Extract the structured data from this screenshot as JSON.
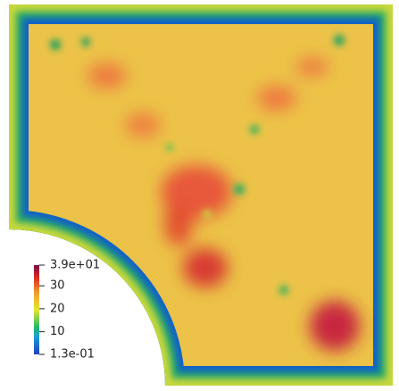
{
  "chart_data": {
    "type": "field",
    "ylim": [
      0.13,
      39
    ],
    "yticks": [
      {
        "value": 39,
        "label": "3.9e+01"
      },
      30,
      20,
      10,
      {
        "value": 0.13,
        "label": "1.3e-01"
      }
    ]
  }
}
